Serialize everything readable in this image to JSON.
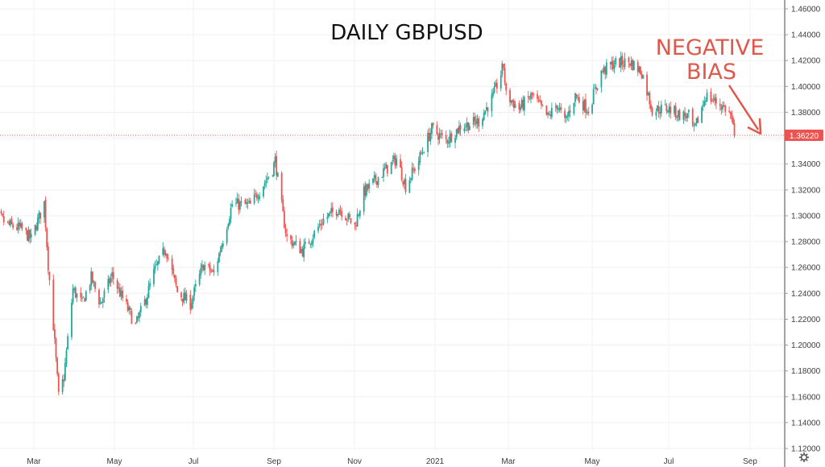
{
  "chart_data": {
    "type": "candlestick",
    "title": "DAILY GBPUSD",
    "annotation": [
      "NEGATIVE",
      "BIAS"
    ],
    "ylim": [
      1.12,
      1.46
    ],
    "yticks": [
      "1.12000",
      "1.14000",
      "1.16000",
      "1.18000",
      "1.20000",
      "1.22000",
      "1.24000",
      "1.26000",
      "1.28000",
      "1.30000",
      "1.32000",
      "1.34000",
      "1.36000",
      "1.38000",
      "1.40000",
      "1.42000",
      "1.44000",
      "1.46000"
    ],
    "xticks": [
      "Mar",
      "May",
      "Jul",
      "Sep",
      "Nov",
      "2021",
      "Mar",
      "May",
      "Jul",
      "Sep"
    ],
    "last_price": 1.3622,
    "last_price_label": "1.36220",
    "grid": true,
    "colors": {
      "up": "#26a69a",
      "down": "#ef5350",
      "annotation": "#e0584a",
      "last_price": "#ef5350"
    },
    "anchors": [
      [
        "2020-01-27",
        1.306
      ],
      [
        "2020-02-10",
        1.293
      ],
      [
        "2020-02-20",
        1.29
      ],
      [
        "2020-02-28",
        1.282
      ],
      [
        "2020-03-09",
        1.31
      ],
      [
        "2020-03-12",
        1.262
      ],
      [
        "2020-03-16",
        1.215
      ],
      [
        "2020-03-20",
        1.16
      ],
      [
        "2020-03-24",
        1.175
      ],
      [
        "2020-03-31",
        1.243
      ],
      [
        "2020-04-07",
        1.232
      ],
      [
        "2020-04-14",
        1.252
      ],
      [
        "2020-04-21",
        1.232
      ],
      [
        "2020-04-30",
        1.254
      ],
      [
        "2020-05-07",
        1.238
      ],
      [
        "2020-05-18",
        1.215
      ],
      [
        "2020-05-26",
        1.236
      ],
      [
        "2020-06-01",
        1.256
      ],
      [
        "2020-06-10",
        1.275
      ],
      [
        "2020-06-19",
        1.241
      ],
      [
        "2020-06-29",
        1.232
      ],
      [
        "2020-07-09",
        1.262
      ],
      [
        "2020-07-17",
        1.255
      ],
      [
        "2020-07-31",
        1.309
      ],
      [
        "2020-08-14",
        1.308
      ],
      [
        "2020-08-31",
        1.336
      ],
      [
        "2020-09-02",
        1.343
      ],
      [
        "2020-09-08",
        1.3
      ],
      [
        "2020-09-11",
        1.283
      ],
      [
        "2020-09-23",
        1.273
      ],
      [
        "2020-10-09",
        1.297
      ],
      [
        "2020-10-21",
        1.306
      ],
      [
        "2020-11-02",
        1.292
      ],
      [
        "2020-11-09",
        1.318
      ],
      [
        "2020-11-23",
        1.333
      ],
      [
        "2020-12-04",
        1.344
      ],
      [
        "2020-12-11",
        1.323
      ],
      [
        "2020-12-21",
        1.343
      ],
      [
        "2020-12-31",
        1.367
      ],
      [
        "2021-01-11",
        1.358
      ],
      [
        "2021-01-22",
        1.369
      ],
      [
        "2021-02-05",
        1.373
      ],
      [
        "2021-02-16",
        1.392
      ],
      [
        "2021-02-24",
        1.416
      ],
      [
        "2021-02-26",
        1.393
      ],
      [
        "2021-03-08",
        1.383
      ],
      [
        "2021-03-18",
        1.393
      ],
      [
        "2021-03-30",
        1.376
      ],
      [
        "2021-04-06",
        1.386
      ],
      [
        "2021-04-12",
        1.372
      ],
      [
        "2021-04-20",
        1.393
      ],
      [
        "2021-04-30",
        1.382
      ],
      [
        "2021-05-10",
        1.411
      ],
      [
        "2021-05-20",
        1.418
      ],
      [
        "2021-06-01",
        1.419
      ],
      [
        "2021-06-10",
        1.411
      ],
      [
        "2021-06-18",
        1.382
      ],
      [
        "2021-06-30",
        1.383
      ],
      [
        "2021-07-09",
        1.378
      ],
      [
        "2021-07-16",
        1.377
      ],
      [
        "2021-07-20",
        1.365
      ],
      [
        "2021-07-29",
        1.393
      ],
      [
        "2021-08-06",
        1.388
      ],
      [
        "2021-08-13",
        1.383
      ],
      [
        "2021-08-17",
        1.378
      ],
      [
        "2021-08-20",
        1.362
      ]
    ]
  }
}
